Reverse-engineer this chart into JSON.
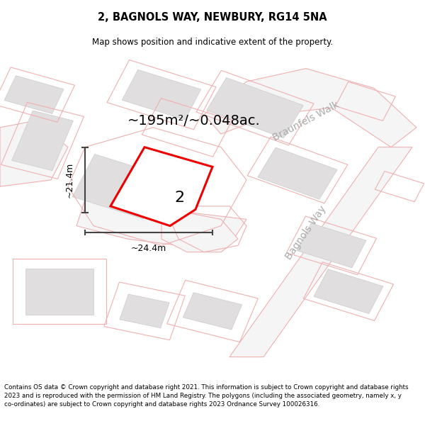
{
  "title": "2, BAGNOLS WAY, NEWBURY, RG14 5NA",
  "subtitle": "Map shows position and indicative extent of the property.",
  "area_text": "~195m²/~0.048ac.",
  "width_label": "~24.4m",
  "height_label": "~21.4m",
  "plot_number": "2",
  "footer": "Contains OS data © Crown copyright and database right 2021. This information is subject to Crown copyright and database rights 2023 and is reproduced with the permission of HM Land Registry. The polygons (including the associated geometry, namely x, y co-ordinates) are subject to Crown copyright and database rights 2023 Ordnance Survey 100026316.",
  "map_bg": "#f8f6f6",
  "plot_color": "#ee0000",
  "plot_fill": "#ffffff",
  "road_outline_color": "#f0b0b0",
  "building_fc": "#e0dede",
  "building_ec": "#cccccc",
  "street_label_color": "#aaaaaa",
  "dim_line_color": "#444444",
  "street_label_fontsize": 10
}
